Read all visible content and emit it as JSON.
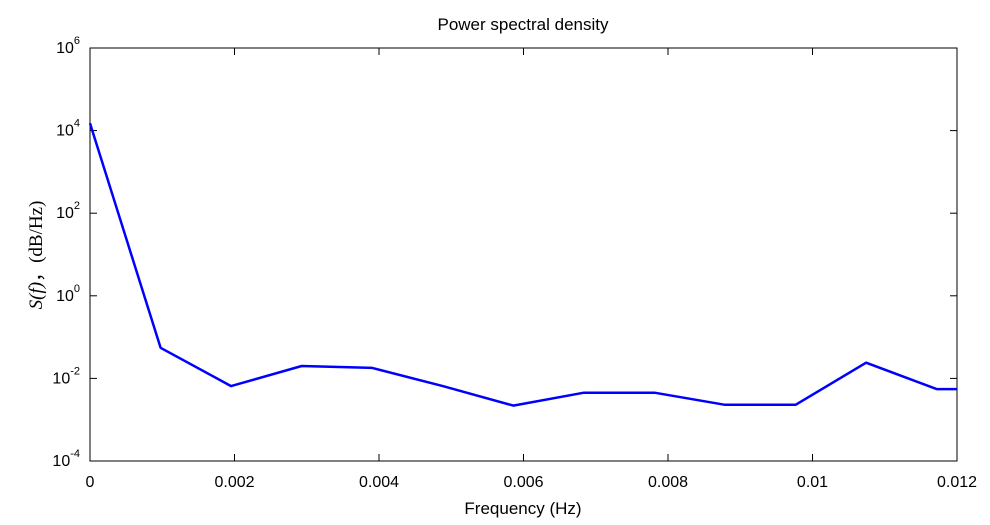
{
  "chart_data": {
    "type": "line",
    "title": "Power spectral density",
    "xlabel": "Frequency (Hz)",
    "ylabel": {
      "symbol": "S(f)",
      "separator": "，",
      "unit": "(dB/Hz)"
    },
    "xlim": [
      0,
      0.012
    ],
    "ylim": [
      0.0001,
      1000000
    ],
    "yscale": "log",
    "grid": false,
    "x_ticks": [
      {
        "value": 0,
        "label": "0"
      },
      {
        "value": 0.002,
        "label": "0.002"
      },
      {
        "value": 0.004,
        "label": "0.004"
      },
      {
        "value": 0.006,
        "label": "0.006"
      },
      {
        "value": 0.008,
        "label": "0.008"
      },
      {
        "value": 0.01,
        "label": "0.01"
      },
      {
        "value": 0.012,
        "label": "0.012"
      }
    ],
    "y_ticks": [
      {
        "value": 0.0001,
        "base": "10",
        "exp": "-4"
      },
      {
        "value": 0.01,
        "base": "10",
        "exp": "-2"
      },
      {
        "value": 1,
        "base": "10",
        "exp": "0"
      },
      {
        "value": 100,
        "base": "10",
        "exp": "2"
      },
      {
        "value": 10000,
        "base": "10",
        "exp": "4"
      },
      {
        "value": 1000000,
        "base": "10",
        "exp": "6"
      }
    ],
    "series": [
      {
        "color": "#0000ff",
        "x": [
          0,
          0.000977,
          0.001953,
          0.00293,
          0.003906,
          0.004883,
          0.005859,
          0.006836,
          0.007813,
          0.008789,
          0.009766,
          0.010742,
          0.011719,
          0.012
        ],
        "y": [
          15000,
          0.055,
          0.0065,
          0.02,
          0.018,
          0.0065,
          0.0022,
          0.0045,
          0.0045,
          0.0023,
          0.0023,
          0.024,
          0.0055,
          0.0055
        ]
      }
    ]
  }
}
